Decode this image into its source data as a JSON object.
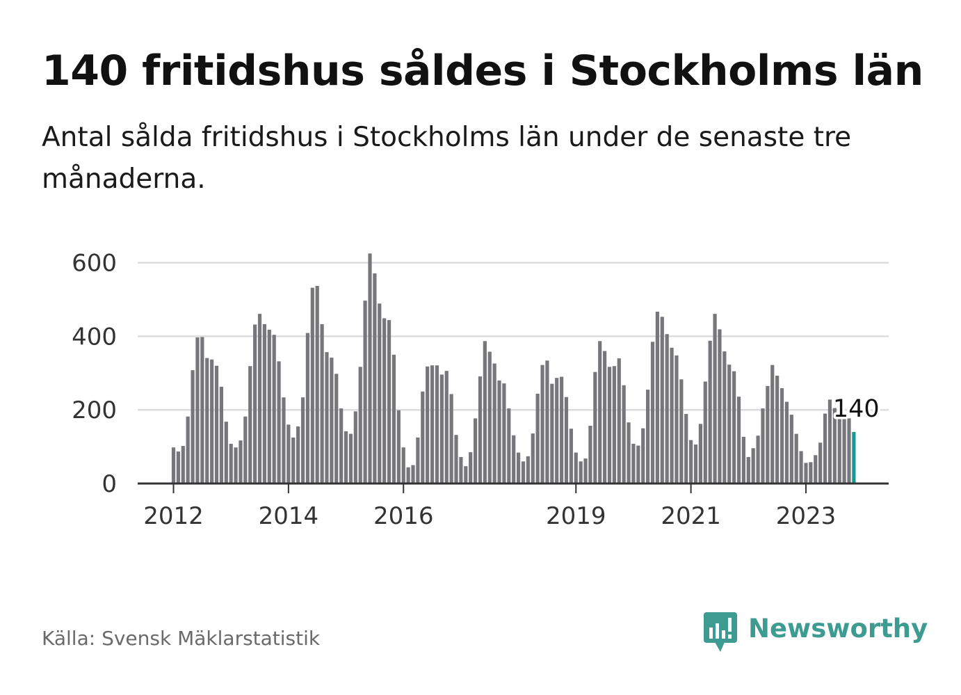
{
  "header": {
    "title": "140 fritidshus såldes i Stockholms län",
    "subtitle": "Antal sålda fritidshus i Stockholms län under de senaste tre månaderna."
  },
  "footer": {
    "source": "Källa: Svensk Mäklarstatistik",
    "brand": "Newsworthy",
    "brand_icon": "chart-bubble-icon"
  },
  "colors": {
    "bar": "#76767b",
    "highlight": "#159a93",
    "grid": "#dddddd",
    "axis": "#333333",
    "brand": "#3d9b91"
  },
  "chart_data": {
    "type": "bar",
    "title": "140 fritidshus såldes i Stockholms län",
    "xlabel": "",
    "ylabel": "",
    "ylim": [
      0,
      650
    ],
    "yticks": [
      0,
      200,
      400,
      600
    ],
    "grid": true,
    "start": "2012-01",
    "xticks": [
      {
        "label": "2012",
        "index": 0
      },
      {
        "label": "2014",
        "index": 24
      },
      {
        "label": "2016",
        "index": 48
      },
      {
        "label": "2019",
        "index": 84
      },
      {
        "label": "2021",
        "index": 108
      },
      {
        "label": "2023",
        "index": 132
      }
    ],
    "values": [
      98,
      87,
      102,
      182,
      308,
      397,
      398,
      341,
      337,
      320,
      263,
      168,
      108,
      98,
      117,
      182,
      319,
      432,
      461,
      433,
      418,
      404,
      332,
      234,
      160,
      125,
      155,
      234,
      409,
      532,
      537,
      433,
      357,
      342,
      298,
      204,
      142,
      135,
      196,
      317,
      497,
      625,
      571,
      489,
      449,
      444,
      350,
      199,
      98,
      44,
      50,
      125,
      250,
      318,
      321,
      321,
      296,
      306,
      243,
      132,
      72,
      47,
      85,
      177,
      291,
      387,
      358,
      326,
      280,
      272,
      204,
      131,
      84,
      60,
      74,
      136,
      244,
      322,
      334,
      271,
      287,
      290,
      235,
      149,
      84,
      60,
      68,
      157,
      303,
      387,
      360,
      317,
      319,
      340,
      267,
      166,
      108,
      103,
      150,
      255,
      385,
      467,
      453,
      406,
      369,
      348,
      283,
      189,
      118,
      106,
      162,
      277,
      388,
      461,
      419,
      359,
      323,
      305,
      236,
      127,
      72,
      96,
      130,
      204,
      265,
      322,
      293,
      259,
      222,
      187,
      135,
      88,
      56,
      58,
      77,
      111,
      190,
      228,
      205,
      186,
      185,
      177,
      140
    ],
    "highlight_index": 142,
    "highlight_label": "140"
  }
}
